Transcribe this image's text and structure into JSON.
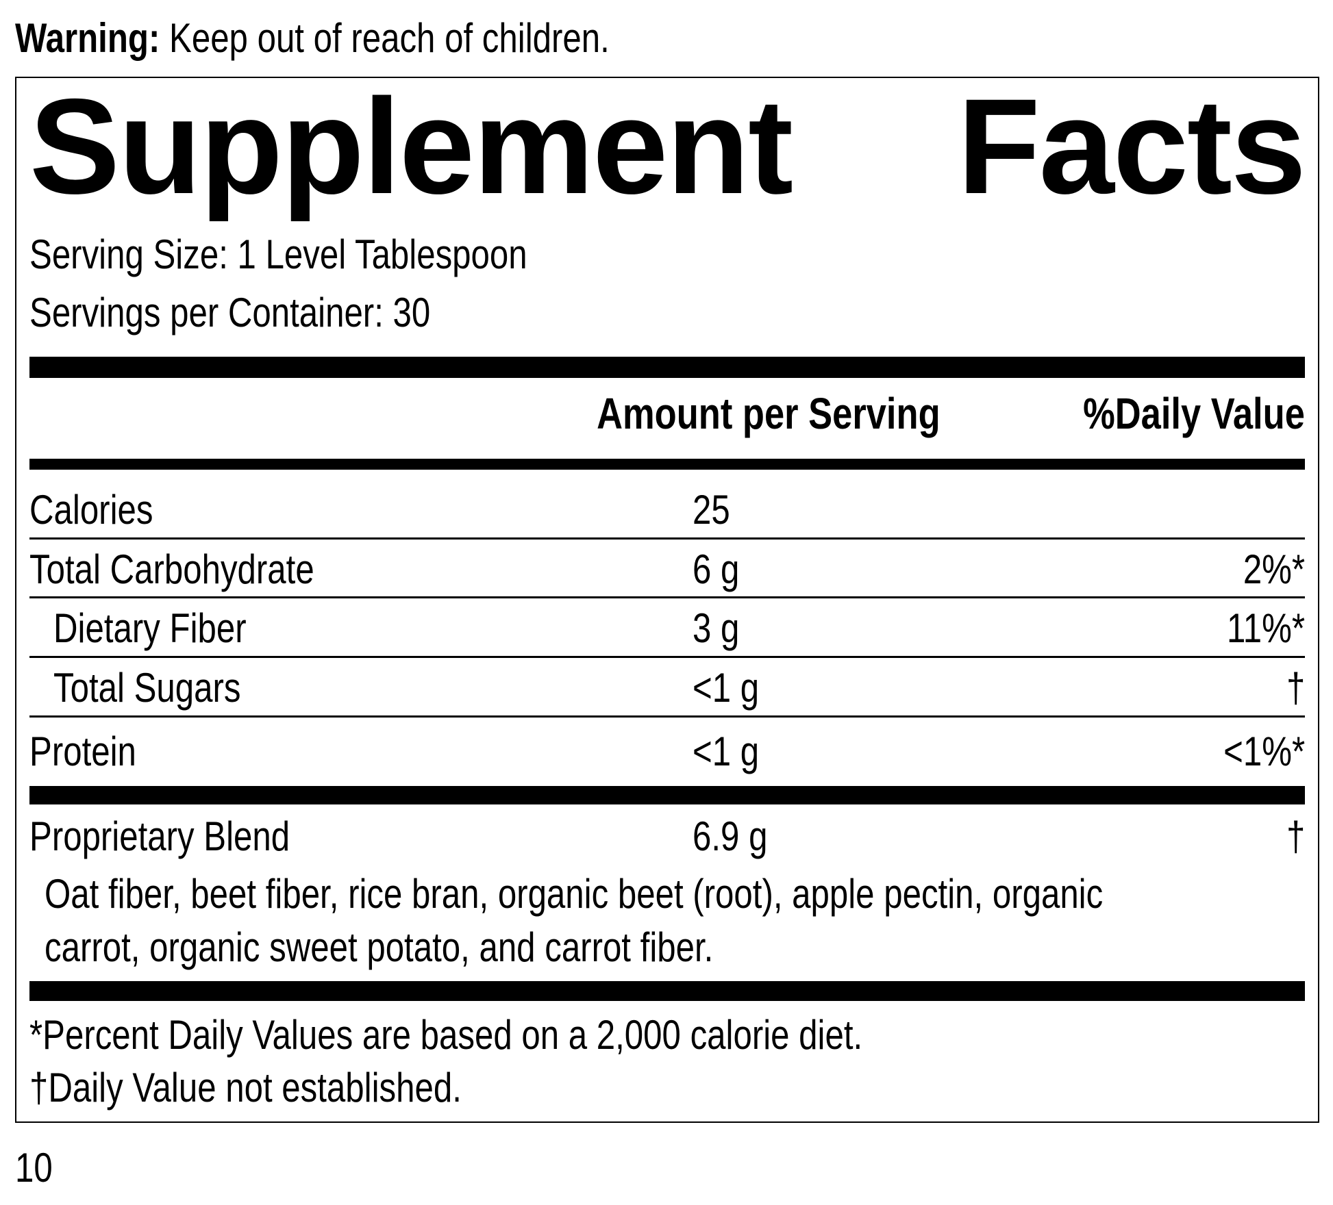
{
  "warning": {
    "label": "Warning:",
    "text": "Keep out of reach of children."
  },
  "title": "Supplement Facts",
  "serving_size": "Serving Size: 1 Level Tablespoon",
  "servings_per_container": "Servings per Container: 30",
  "header": {
    "amount": "Amount per Serving",
    "daily_value": "%Daily Value"
  },
  "rows": [
    {
      "name": "Calories",
      "amount": "25"
    },
    {
      "name": "Total Carbohydrate",
      "amount": "6 g",
      "daily_value": "2%*"
    },
    {
      "name": "Dietary Fiber",
      "amount": "3 g",
      "daily_value": "11%*"
    },
    {
      "name": "Total Sugars",
      "amount": "<1 g",
      "daily_value": "†"
    },
    {
      "name": "Protein",
      "amount": "<1 g",
      "daily_value": "<1%*"
    }
  ],
  "blend": {
    "name": "Proprietary Blend",
    "amount": "6.9 g",
    "daily_value": "†",
    "ingredients": [
      "Oat fiber, beet fiber, rice bran, organic beet (root), apple pectin, organic",
      "carrot, organic sweet potato, and carrot fiber."
    ]
  },
  "footnotes": [
    "*Percent Daily Values are based on a 2,000 calorie diet.",
    "†Daily Value not established."
  ],
  "page_number": "10"
}
